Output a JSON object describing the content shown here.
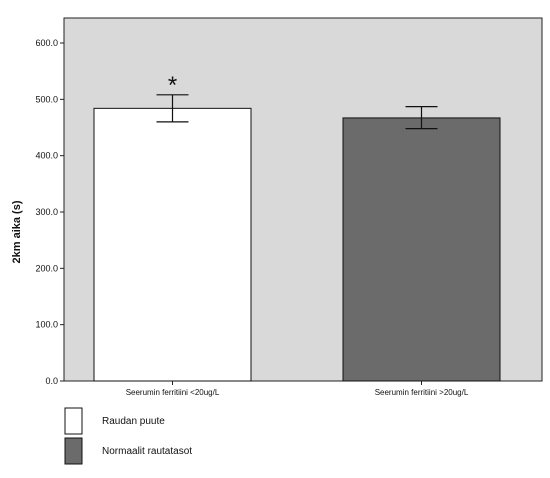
{
  "chart_data": {
    "type": "bar",
    "ylabel": "2km aika (s)",
    "ylim": [
      0,
      600
    ],
    "yticks": [
      "0.0",
      "100.0",
      "200.0",
      "300.0",
      "400.0",
      "500.0",
      "600.0"
    ],
    "categories": [
      "Seerumin ferritiini <20ug/L",
      "Seerumin ferritiini >20ug/L"
    ],
    "values": [
      484,
      467
    ],
    "error_low": [
      460,
      448
    ],
    "error_high": [
      508,
      487
    ],
    "annotations": [
      "*",
      ""
    ],
    "legend": [
      {
        "label": "Raudan puute",
        "color": "#ffffff"
      },
      {
        "label": "Normaalit rautatasot",
        "color": "#6b6b6b"
      }
    ],
    "legend_position": "bottom-left",
    "plot_background": "#d9d9d9",
    "grid": false
  }
}
